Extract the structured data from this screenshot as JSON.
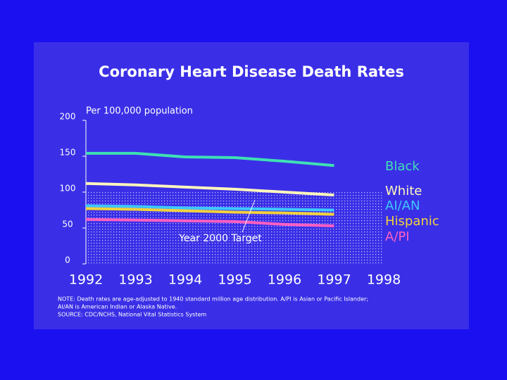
{
  "chart_data": {
    "type": "line",
    "title": "Coronary Heart Disease Death Rates",
    "ylabel": "Per 100,000 population",
    "x": [
      1992,
      1993,
      1994,
      1995,
      1996,
      1997
    ],
    "xlim": [
      1992,
      1998
    ],
    "xticks": [
      1992,
      1993,
      1994,
      1995,
      1996,
      1997,
      1998
    ],
    "ylim": [
      0,
      200
    ],
    "yticks": [
      0,
      50,
      100,
      150,
      200
    ],
    "target": {
      "label": "Year 2000 Target",
      "value": 100
    },
    "series": [
      {
        "name": "Black",
        "color": "#3fe0b4",
        "values": [
          154,
          154,
          149,
          148,
          143,
          137
        ]
      },
      {
        "name": "White",
        "color": "#fff6bc",
        "values": [
          112,
          110,
          107,
          104,
          100,
          96
        ]
      },
      {
        "name": "AI/AN",
        "color": "#3fc8ff",
        "values": [
          81,
          80,
          78,
          77,
          76,
          75
        ]
      },
      {
        "name": "Hispanic",
        "color": "#f2d23c",
        "values": [
          77,
          76,
          74,
          72,
          71,
          69
        ]
      },
      {
        "name": "A/PI",
        "color": "#ff5fc2",
        "values": [
          62,
          61,
          60,
          59,
          55,
          53
        ]
      }
    ],
    "notes": [
      "NOTE: Death rates are age-adjusted to 1940 standard million age distribution.  A/PI is Asian or Pacific Islander;",
      "AI/AN is American Indian or Alaska Native.",
      "SOURCE: CDC/NCHS, National Vital Statistics System"
    ]
  }
}
